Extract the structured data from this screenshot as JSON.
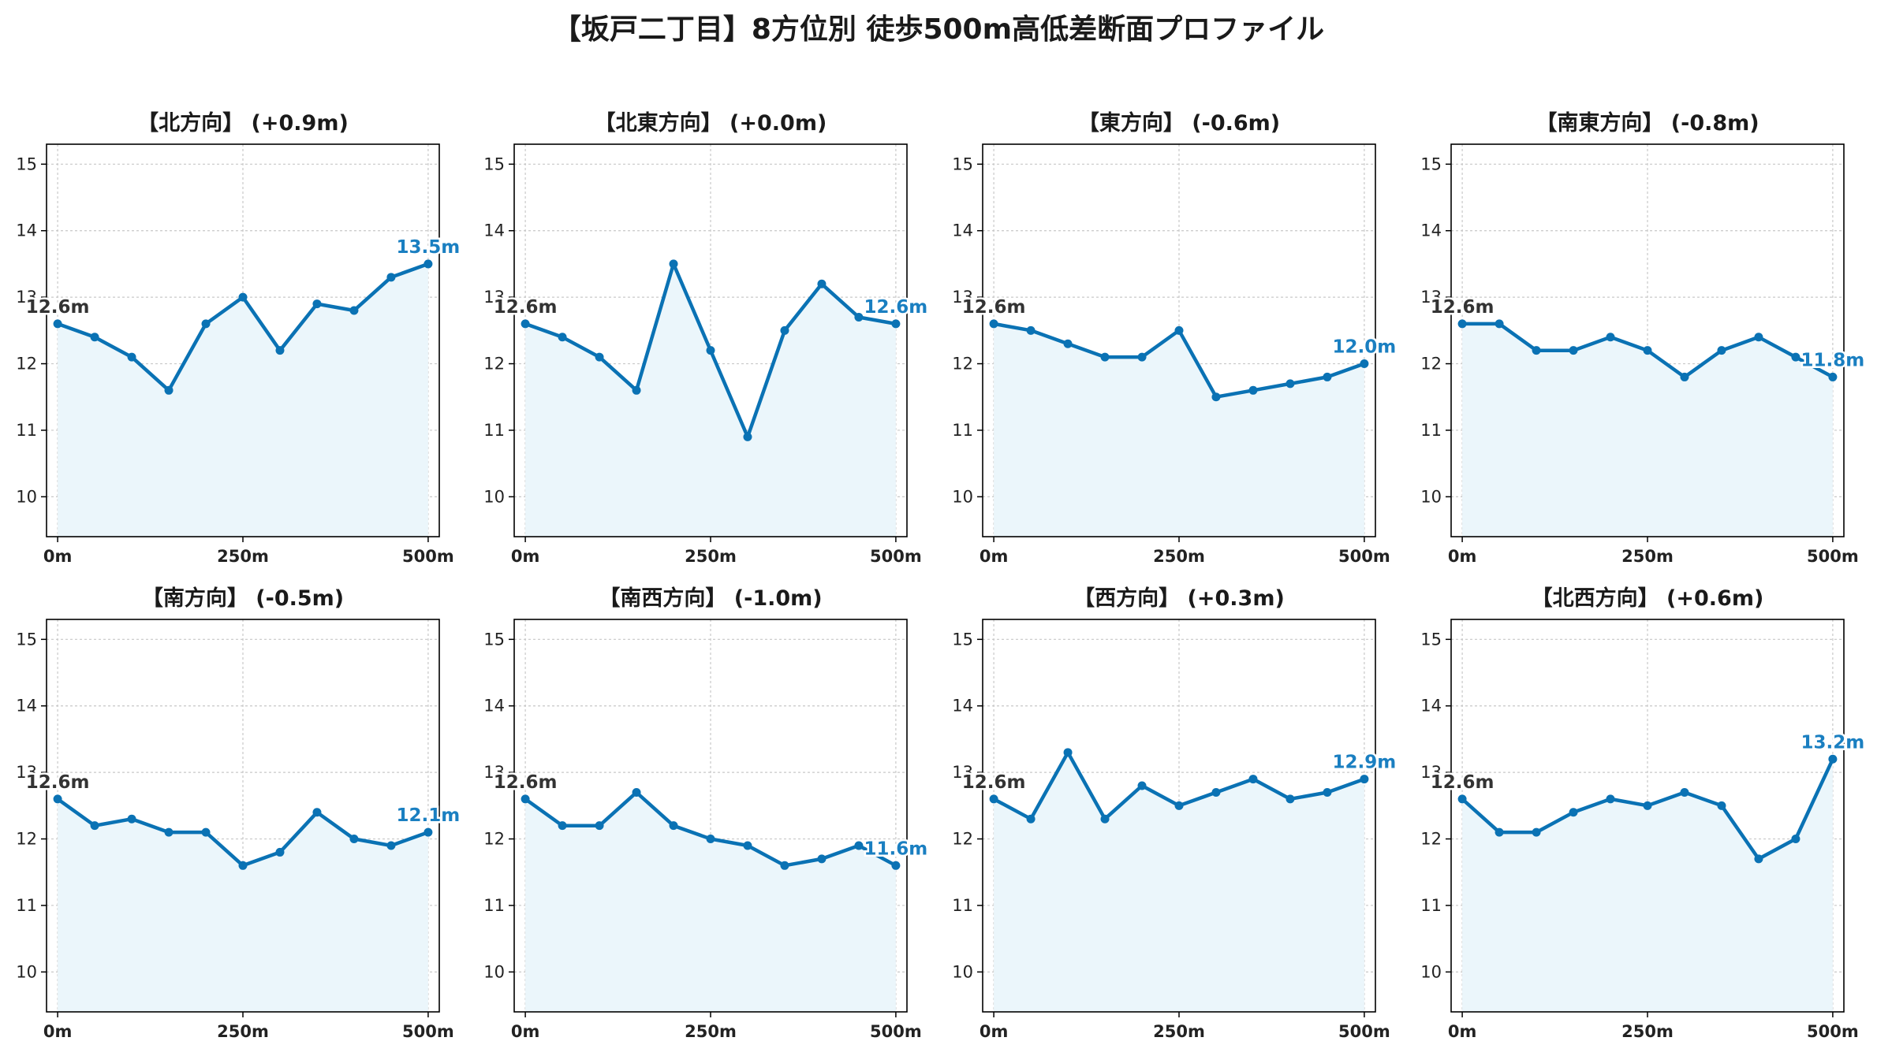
{
  "title": "【坂戸二丁目】8方位別 徒歩500m高低差断面プロファイル",
  "colors": {
    "line": "#0a72b4",
    "fill": "#ebf6fb",
    "grid": "#c8c8c8",
    "start_label": "#333333",
    "end_label": "#1a7fc1"
  },
  "chart_data": [
    {
      "type": "area",
      "title": "【北方向】 (+0.9m)",
      "x": [
        0,
        50,
        100,
        150,
        200,
        250,
        300,
        350,
        400,
        450,
        500
      ],
      "values": [
        12.6,
        12.4,
        12.1,
        11.6,
        12.6,
        13.0,
        12.2,
        12.9,
        12.8,
        13.3,
        13.5
      ],
      "start_label": "12.6m",
      "end_label": "13.5m",
      "xticks": [
        "0m",
        "250m",
        "500m"
      ],
      "yticks": [
        10,
        11,
        12,
        13,
        14,
        15
      ],
      "ylim": [
        9.4,
        15.3
      ],
      "xlim": [
        -15,
        515
      ],
      "grid": true
    },
    {
      "type": "area",
      "title": "【北東方向】 (+0.0m)",
      "x": [
        0,
        50,
        100,
        150,
        200,
        250,
        300,
        350,
        400,
        450,
        500
      ],
      "values": [
        12.6,
        12.4,
        12.1,
        11.6,
        13.5,
        12.2,
        10.9,
        12.5,
        13.2,
        12.7,
        12.6
      ],
      "start_label": "12.6m",
      "end_label": "12.6m",
      "xticks": [
        "0m",
        "250m",
        "500m"
      ],
      "yticks": [
        10,
        11,
        12,
        13,
        14,
        15
      ],
      "ylim": [
        9.4,
        15.3
      ],
      "xlim": [
        -15,
        515
      ],
      "grid": true
    },
    {
      "type": "area",
      "title": "【東方向】 (-0.6m)",
      "x": [
        0,
        50,
        100,
        150,
        200,
        250,
        300,
        350,
        400,
        450,
        500
      ],
      "values": [
        12.6,
        12.5,
        12.3,
        12.1,
        12.1,
        12.5,
        11.5,
        11.6,
        11.7,
        11.8,
        12.0
      ],
      "start_label": "12.6m",
      "end_label": "12.0m",
      "xticks": [
        "0m",
        "250m",
        "500m"
      ],
      "yticks": [
        10,
        11,
        12,
        13,
        14,
        15
      ],
      "ylim": [
        9.4,
        15.3
      ],
      "xlim": [
        -15,
        515
      ],
      "grid": true
    },
    {
      "type": "area",
      "title": "【南東方向】 (-0.8m)",
      "x": [
        0,
        50,
        100,
        150,
        200,
        250,
        300,
        350,
        400,
        450,
        500
      ],
      "values": [
        12.6,
        12.6,
        12.2,
        12.2,
        12.4,
        12.2,
        11.8,
        12.2,
        12.4,
        12.1,
        11.8
      ],
      "start_label": "12.6m",
      "end_label": "11.8m",
      "xticks": [
        "0m",
        "250m",
        "500m"
      ],
      "yticks": [
        10,
        11,
        12,
        13,
        14,
        15
      ],
      "ylim": [
        9.4,
        15.3
      ],
      "xlim": [
        -15,
        515
      ],
      "grid": true
    },
    {
      "type": "area",
      "title": "【南方向】 (-0.5m)",
      "x": [
        0,
        50,
        100,
        150,
        200,
        250,
        300,
        350,
        400,
        450,
        500
      ],
      "values": [
        12.6,
        12.2,
        12.3,
        12.1,
        12.1,
        11.6,
        11.8,
        12.4,
        12.0,
        11.9,
        12.1
      ],
      "start_label": "12.6m",
      "end_label": "12.1m",
      "xticks": [
        "0m",
        "250m",
        "500m"
      ],
      "yticks": [
        10,
        11,
        12,
        13,
        14,
        15
      ],
      "ylim": [
        9.4,
        15.3
      ],
      "xlim": [
        -15,
        515
      ],
      "grid": true
    },
    {
      "type": "area",
      "title": "【南西方向】 (-1.0m)",
      "x": [
        0,
        50,
        100,
        150,
        200,
        250,
        300,
        350,
        400,
        450,
        500
      ],
      "values": [
        12.6,
        12.2,
        12.2,
        12.7,
        12.2,
        12.0,
        11.9,
        11.6,
        11.7,
        11.9,
        11.6
      ],
      "start_label": "12.6m",
      "end_label": "11.6m",
      "xticks": [
        "0m",
        "250m",
        "500m"
      ],
      "yticks": [
        10,
        11,
        12,
        13,
        14,
        15
      ],
      "ylim": [
        9.4,
        15.3
      ],
      "xlim": [
        -15,
        515
      ],
      "grid": true
    },
    {
      "type": "area",
      "title": "【西方向】 (+0.3m)",
      "x": [
        0,
        50,
        100,
        150,
        200,
        250,
        300,
        350,
        400,
        450,
        500
      ],
      "values": [
        12.6,
        12.3,
        13.3,
        12.3,
        12.8,
        12.5,
        12.7,
        12.9,
        12.6,
        12.7,
        12.9
      ],
      "start_label": "12.6m",
      "end_label": "12.9m",
      "xticks": [
        "0m",
        "250m",
        "500m"
      ],
      "yticks": [
        10,
        11,
        12,
        13,
        14,
        15
      ],
      "ylim": [
        9.4,
        15.3
      ],
      "xlim": [
        -15,
        515
      ],
      "grid": true
    },
    {
      "type": "area",
      "title": "【北西方向】 (+0.6m)",
      "x": [
        0,
        50,
        100,
        150,
        200,
        250,
        300,
        350,
        400,
        450,
        500
      ],
      "values": [
        12.6,
        12.1,
        12.1,
        12.4,
        12.6,
        12.5,
        12.7,
        12.5,
        11.7,
        12.0,
        13.2
      ],
      "start_label": "12.6m",
      "end_label": "13.2m",
      "xticks": [
        "0m",
        "250m",
        "500m"
      ],
      "yticks": [
        10,
        11,
        12,
        13,
        14,
        15
      ],
      "ylim": [
        9.4,
        15.3
      ],
      "xlim": [
        -15,
        515
      ],
      "grid": true
    }
  ]
}
